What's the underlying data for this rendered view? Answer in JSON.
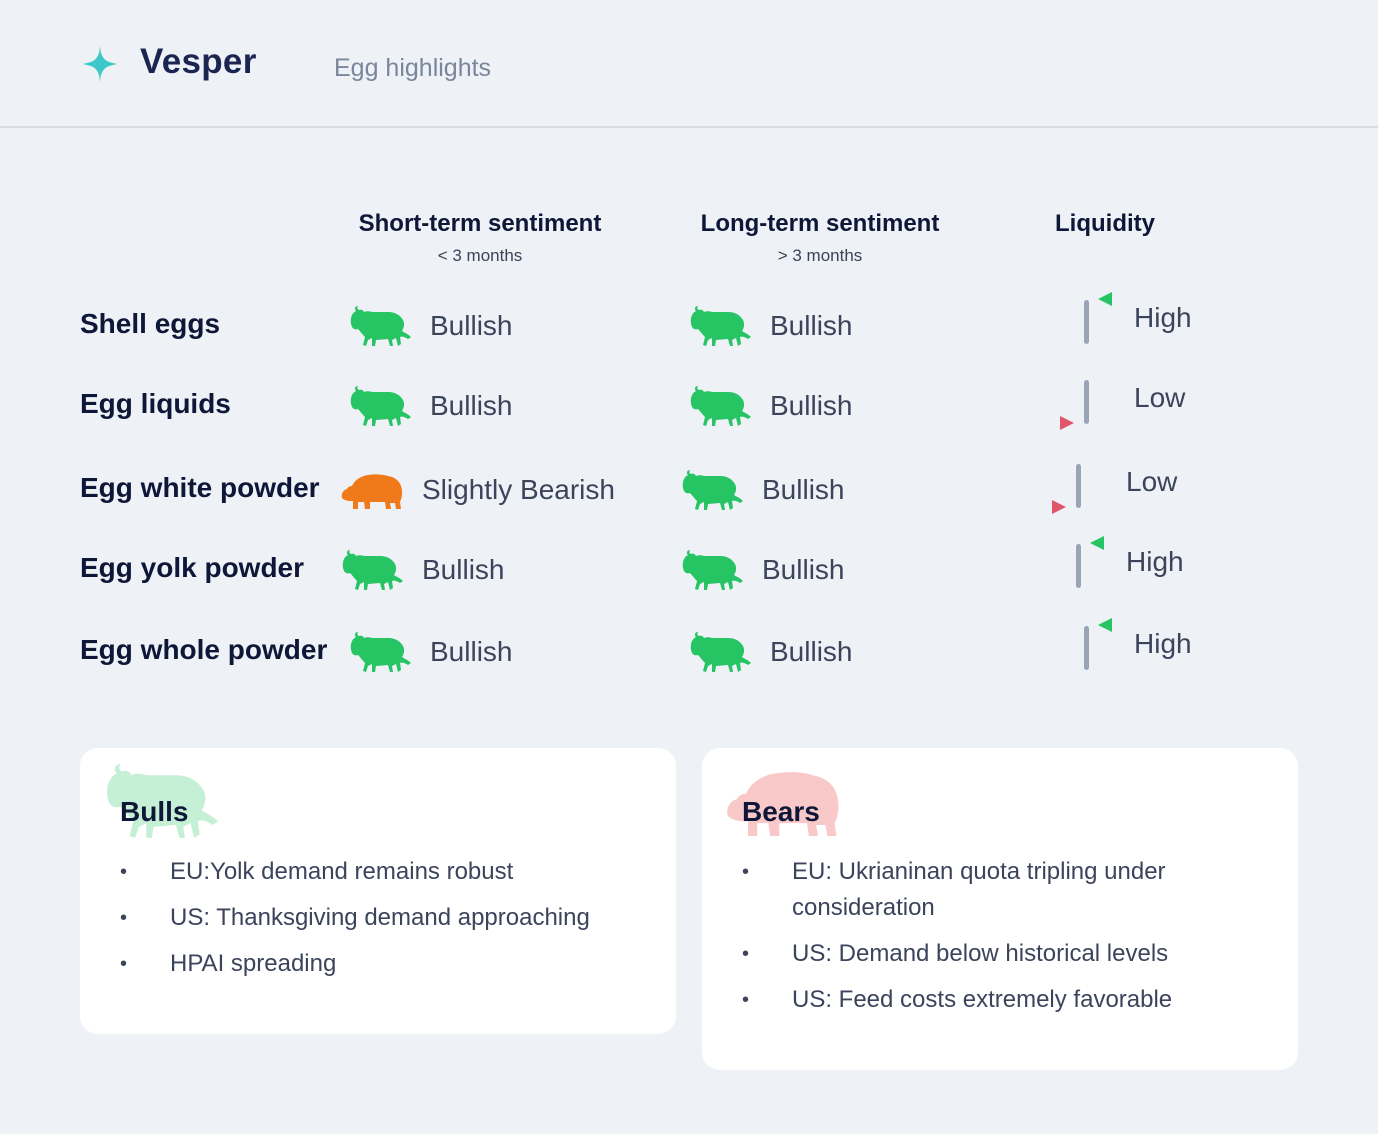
{
  "header": {
    "brand": "Vesper",
    "subtitle": "Egg highlights",
    "logo_icon": "sparkle-icon",
    "logo_color": "#3cc8c8"
  },
  "columns": {
    "short_term": {
      "title": "Short-term sentiment",
      "sub": "< 3 months"
    },
    "long_term": {
      "title": "Long-term sentiment",
      "sub": "> 3 months"
    },
    "liquidity": {
      "title": "Liquidity"
    }
  },
  "colors": {
    "bull": "#27c464",
    "bear": "#f07a1a",
    "high_flag": "#27c464",
    "low_flag": "#e0566a",
    "bull_card_icon": "#c6f0d6",
    "bear_card_icon": "#f9c9c9"
  },
  "rows": [
    {
      "label": "Shell eggs",
      "short": "Bullish",
      "short_icon": "bull-icon",
      "long": "Bullish",
      "long_icon": "bull-icon",
      "liquidity": "High"
    },
    {
      "label": "Egg liquids",
      "short": "Bullish",
      "short_icon": "bull-icon",
      "long": "Bullish",
      "long_icon": "bull-icon",
      "liquidity": "Low"
    },
    {
      "label": "Egg white powder",
      "short": "Slightly Bearish",
      "short_icon": "bear-icon",
      "long": "Bullish",
      "long_icon": "bull-icon",
      "liquidity": "Low"
    },
    {
      "label": "Egg yolk powder",
      "short": "Bullish",
      "short_icon": "bull-icon",
      "long": "Bullish",
      "long_icon": "bull-icon",
      "liquidity": "High"
    },
    {
      "label": "Egg whole powder",
      "short": "Bullish",
      "short_icon": "bull-icon",
      "long": "Bullish",
      "long_icon": "bull-icon",
      "liquidity": "High"
    }
  ],
  "bulls": {
    "title": "Bulls",
    "items": [
      "EU:Yolk demand remains robust",
      "US: Thanksgiving demand approaching",
      "HPAI spreading"
    ]
  },
  "bears": {
    "title": "Bears",
    "items": [
      "EU: Ukrianinan quota tripling under consideration",
      "US: Demand below historical levels",
      "US: Feed costs extremely favorable"
    ]
  }
}
